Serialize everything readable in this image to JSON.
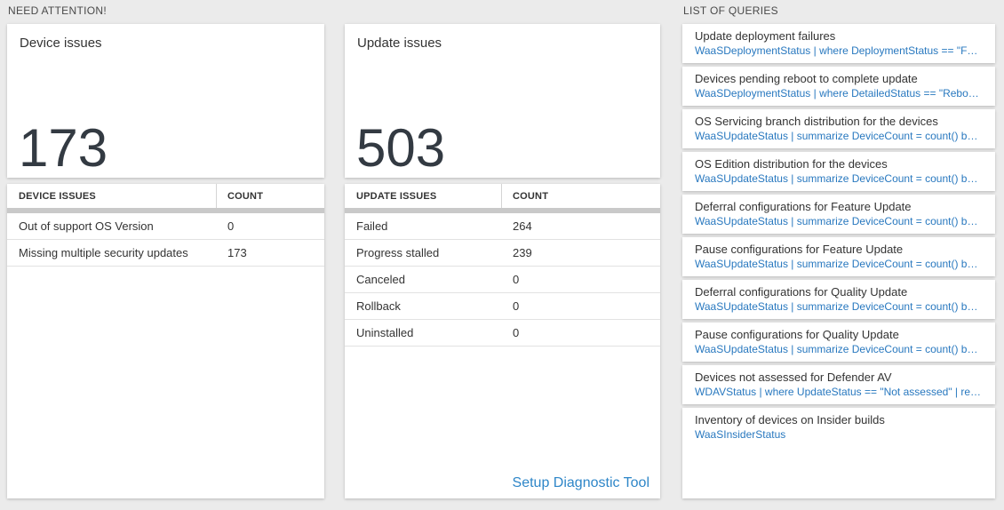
{
  "colors": {
    "page_background": "#ebebeb",
    "metric_text": "#333a42",
    "query_blue": "#2878bf",
    "link_blue": "#2e86c8"
  },
  "need_attention": {
    "header": "NEED ATTENTION!",
    "device_card": {
      "title": "Device issues",
      "value": "173"
    },
    "device_table": {
      "columns": [
        "DEVICE ISSUES",
        "COUNT"
      ],
      "rows": [
        [
          "Out of support OS Version",
          "0"
        ],
        [
          "Missing multiple security updates",
          "173"
        ]
      ]
    },
    "update_card": {
      "title": "Update issues",
      "value": "503"
    },
    "update_table": {
      "columns": [
        "UPDATE ISSUES",
        "COUNT"
      ],
      "rows": [
        [
          "Failed",
          "264"
        ],
        [
          "Progress stalled",
          "239"
        ],
        [
          "Canceled",
          "0"
        ],
        [
          "Rollback",
          "0"
        ],
        [
          "Uninstalled",
          "0"
        ]
      ]
    },
    "diagnostic_link": "Setup Diagnostic Tool"
  },
  "query_panel": {
    "header": "LIST OF QUERIES",
    "items": [
      {
        "title": "Update deployment failures",
        "query": "WaaSDeploymentStatus | where DeploymentStatus == \"Failed\" |..."
      },
      {
        "title": "Devices pending reboot to complete update",
        "query": "WaaSDeploymentStatus | where DetailedStatus == \"Reboot pend..."
      },
      {
        "title": "OS Servicing branch distribution for the devices",
        "query": "WaaSUpdateStatus | summarize DeviceCount = count() by OSSer..."
      },
      {
        "title": "OS Edition distribution for the devices",
        "query": "WaaSUpdateStatus | summarize DeviceCount = count() by OSEdit..."
      },
      {
        "title": "Deferral configurations for Feature Update",
        "query": "WaaSUpdateStatus | summarize DeviceCount = count() by Featur..."
      },
      {
        "title": "Pause configurations for Feature Update",
        "query": "WaaSUpdateStatus | summarize DeviceCount = count() by Featur..."
      },
      {
        "title": "Deferral configurations for Quality Update",
        "query": "WaaSUpdateStatus | summarize DeviceCount = count() by Qualit..."
      },
      {
        "title": "Pause configurations for Quality Update",
        "query": "WaaSUpdateStatus | summarize DeviceCount = count() by Qualit..."
      },
      {
        "title": "Devices not assessed for Defender AV",
        "query": "WDAVStatus | where UpdateStatus == \"Not assessed\" | render ta..."
      },
      {
        "title": "Inventory of devices on Insider builds",
        "query": "WaaSInsiderStatus"
      }
    ]
  }
}
